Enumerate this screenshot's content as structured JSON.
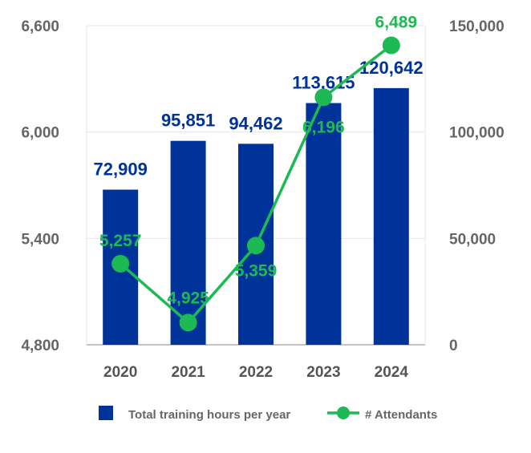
{
  "chart_data": {
    "type": "bar+line",
    "title": "",
    "categories": [
      "2020",
      "2021",
      "2022",
      "2023",
      "2024"
    ],
    "series": [
      {
        "name": "Total training hours per year",
        "type": "bar",
        "axis": "right",
        "color": "#003399",
        "values": [
          72909,
          95851,
          94462,
          113615,
          120642
        ],
        "labels": [
          "72,909",
          "95,851",
          "94,462",
          "113,615",
          "120,642"
        ]
      },
      {
        "name": "# Attendants",
        "type": "line",
        "axis": "left",
        "color": "#1DB954",
        "values": [
          5257,
          4925,
          5359,
          6196,
          6489
        ],
        "labels": [
          "5,257",
          "4,925",
          "5,359",
          "6,196",
          "6,489"
        ]
      }
    ],
    "left_axis": {
      "range": [
        4800,
        6600
      ],
      "ticks": [
        "4,800",
        "5,400",
        "6,000",
        "6,600"
      ],
      "tick_values": [
        4800,
        5400,
        6000,
        6600
      ]
    },
    "right_axis": {
      "range": [
        0,
        150000
      ],
      "ticks": [
        "0",
        "50,000",
        "100,000",
        "150,000"
      ],
      "tick_values": [
        0,
        50000,
        100000,
        150000
      ]
    },
    "grid": true,
    "legend_position": "bottom"
  }
}
